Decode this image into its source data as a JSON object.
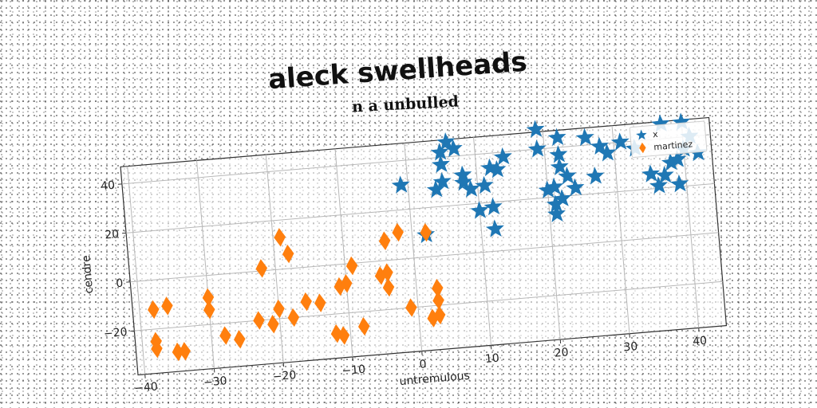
{
  "chart_data": {
    "type": "scatter",
    "title": "aleck swellheads",
    "subtitle": "n a unbulled",
    "xlabel": "untremulous",
    "ylabel": "cendre",
    "xlim": [
      -41,
      44
    ],
    "ylim": [
      -38,
      47
    ],
    "xticks": [
      -40,
      -30,
      -20,
      -10,
      0,
      10,
      20,
      30,
      40
    ],
    "yticks": [
      -20,
      0,
      20,
      40
    ],
    "grid": true,
    "legend_position": "top-right",
    "series": [
      {
        "name": "x",
        "marker": "star",
        "color": "#1f77b4",
        "points": [
          [
            -1,
            30
          ],
          [
            2,
            9
          ],
          [
            4,
            27
          ],
          [
            5,
            30
          ],
          [
            5,
            37
          ],
          [
            5,
            42
          ],
          [
            6,
            46
          ],
          [
            7,
            43
          ],
          [
            8,
            29
          ],
          [
            8,
            32
          ],
          [
            9,
            26
          ],
          [
            11,
            27
          ],
          [
            10,
            17
          ],
          [
            12,
            18
          ],
          [
            12,
            9
          ],
          [
            12,
            34
          ],
          [
            13,
            33
          ],
          [
            14,
            38
          ],
          [
            19,
            40
          ],
          [
            19,
            48
          ],
          [
            22,
            44
          ],
          [
            22,
            37
          ],
          [
            22,
            32
          ],
          [
            23,
            28
          ],
          [
            20,
            23
          ],
          [
            21,
            24
          ],
          [
            21,
            17
          ],
          [
            22,
            19
          ],
          [
            21,
            13
          ],
          [
            24,
            23
          ],
          [
            27,
            27
          ],
          [
            28,
            39
          ],
          [
            26,
            43
          ],
          [
            29,
            36
          ],
          [
            31,
            40
          ],
          [
            33,
            37
          ],
          [
            35,
            26
          ],
          [
            36,
            21
          ],
          [
            37,
            25
          ],
          [
            38,
            30
          ],
          [
            39,
            21
          ],
          [
            39,
            31
          ],
          [
            40,
            35
          ],
          [
            41,
            40
          ],
          [
            42,
            33
          ],
          [
            40,
            46
          ],
          [
            37,
            46
          ]
        ]
      },
      {
        "name": "martinez",
        "marker": "diamond",
        "color": "#ff7f0e",
        "points": [
          [
            -38,
            -12
          ],
          [
            -38,
            -25
          ],
          [
            -38,
            -28
          ],
          [
            -35,
            -30
          ],
          [
            -34,
            -30
          ],
          [
            -36,
            -11
          ],
          [
            -30,
            -14
          ],
          [
            -30,
            -9
          ],
          [
            -28,
            -25
          ],
          [
            -26,
            -27
          ],
          [
            -23,
            -20
          ],
          [
            -22,
            1
          ],
          [
            -21,
            -22
          ],
          [
            -20,
            -16
          ],
          [
            -19,
            13
          ],
          [
            -18,
            -20
          ],
          [
            -18,
            6
          ],
          [
            -16,
            -14
          ],
          [
            -14,
            -15
          ],
          [
            -12,
            -28
          ],
          [
            -11,
            -29
          ],
          [
            -11,
            -9
          ],
          [
            -10,
            -8
          ],
          [
            -9,
            -1
          ],
          [
            -8,
            -26
          ],
          [
            -5,
            -6
          ],
          [
            -4,
            8
          ],
          [
            -4,
            -5
          ],
          [
            -4,
            -11
          ],
          [
            -2,
            11
          ],
          [
            -1,
            -20
          ],
          [
            2,
            -25
          ],
          [
            2,
            10
          ],
          [
            3,
            -24
          ],
          [
            3,
            -13
          ],
          [
            3,
            -18
          ]
        ]
      }
    ]
  }
}
